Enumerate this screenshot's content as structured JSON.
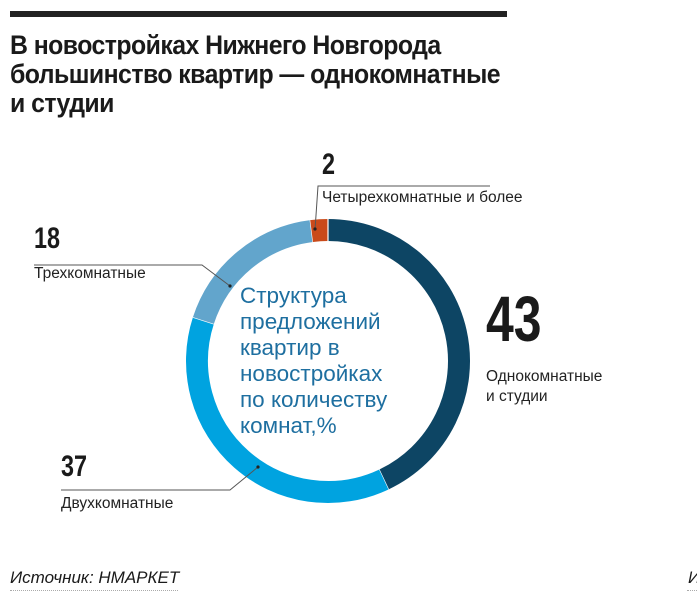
{
  "header": {
    "title_lines": [
      "В новостройках Нижнего Новгорода",
      "большинство квартир — однокомнатные",
      "и студии"
    ]
  },
  "chart": {
    "center_label_lines": [
      "Структура",
      "предложений",
      "квартир в",
      "новостройках",
      "по количеству",
      "комнат,%"
    ],
    "segments": [
      {
        "value": "43",
        "label_lines": [
          "Однокомнатные",
          "и студии"
        ],
        "color": "#0d4564"
      },
      {
        "value": "37",
        "label_lines": [
          "Двухкомнатные"
        ],
        "color": "#00a3e0"
      },
      {
        "value": "18",
        "label_lines": [
          "Трехкомнатные"
        ],
        "color": "#62a5cc"
      },
      {
        "value": "2",
        "label_lines": [
          "Четырехкомнатные и более"
        ],
        "color": "#c94a1a"
      }
    ]
  },
  "footer": {
    "source": "Источник: НМАРКЕТ",
    "corner_glyph": "И"
  },
  "chart_data": {
    "type": "pie",
    "subtype": "donut",
    "title": "В новостройках Нижнего Новгорода большинство квартир — однокомнатные и студии",
    "center_label": "Структура предложений квартир в новостройках по количеству комнат,%",
    "categories": [
      "Однокомнатные и студии",
      "Двухкомнатные",
      "Трехкомнатные",
      "Четырехкомнатные и более"
    ],
    "values": [
      43,
      37,
      18,
      2
    ],
    "colors": [
      "#0d4564",
      "#00a3e0",
      "#62a5cc",
      "#c94a1a"
    ],
    "unit": "%",
    "start_angle": "top, clockwise",
    "source": "Источник: НМАРКЕТ",
    "legend": "inline callout labels"
  }
}
